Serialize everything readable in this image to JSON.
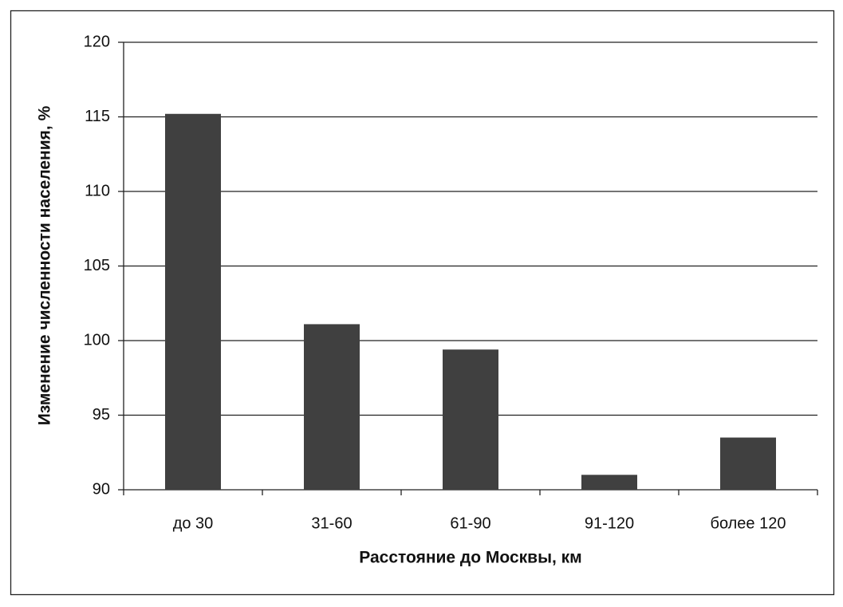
{
  "chart_data": {
    "type": "bar",
    "x_label": "Расстояние до Москвы, км",
    "y_label": "Изменение численности населения, %",
    "categories": [
      "до 30",
      "31-60",
      "61-90",
      "91-120",
      "более 120"
    ],
    "values": [
      115.2,
      101.1,
      99.4,
      91.0,
      93.5
    ],
    "color": "#404040",
    "ylim": [
      90,
      120
    ],
    "yticks": [
      90,
      95,
      100,
      105,
      110,
      115,
      120
    ],
    "grid": true
  }
}
